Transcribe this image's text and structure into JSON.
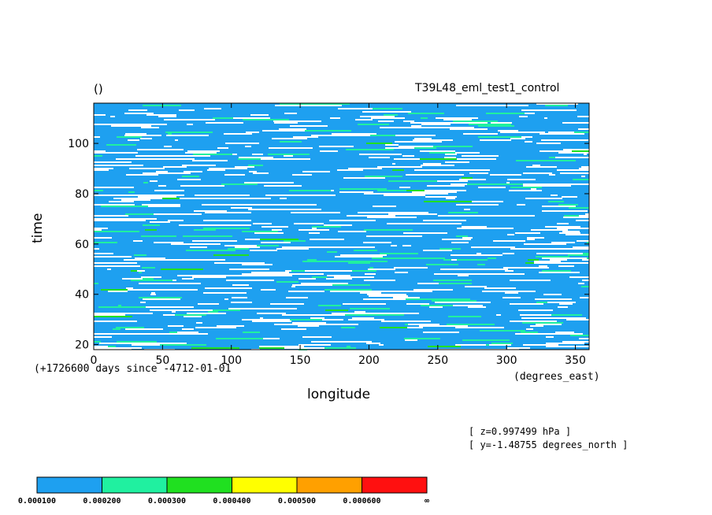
{
  "chart_data": {
    "type": "heatmap",
    "title_left": "()",
    "title_right": "T39L48_eml_test1_control",
    "xlabel": "longitude",
    "xunits": "(degrees_east)",
    "ylabel": "time",
    "time_note": "(+1726600 days since -4712-01-01",
    "xlim": [
      0,
      360
    ],
    "ylim": [
      18,
      116
    ],
    "x_ticks": [
      0,
      50,
      100,
      150,
      200,
      250,
      300,
      350
    ],
    "y_ticks": [
      20,
      40,
      60,
      80,
      100
    ],
    "info_lines": [
      "[ z=0.997499 hPa ]",
      "[ y=-1.48755 degrees_north ]"
    ],
    "colorbar": {
      "levels": [
        "0.000100",
        "0.000200",
        "0.000300",
        "0.000400",
        "0.000500",
        "0.000600",
        "∞"
      ],
      "colors": [
        "#1ea0f0",
        "#20f0a0",
        "#20e020",
        "#ffff00",
        "#ffa000",
        "#ff1010"
      ]
    },
    "background_color": "#ffffff"
  }
}
